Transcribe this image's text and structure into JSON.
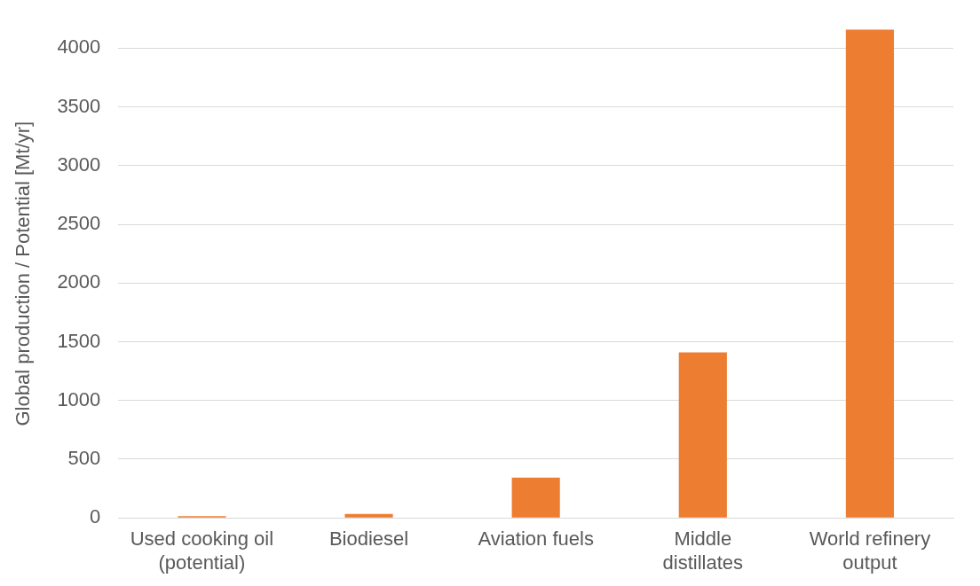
{
  "chart_data": {
    "type": "bar",
    "ylabel": "Global production / Potential [Mt/yr]",
    "categories": [
      "Used cooking oil (potential)",
      "Biodiesel",
      "Aviation fuels",
      "Middle distillates",
      "World refinery output"
    ],
    "values": [
      15,
      33,
      344,
      1410,
      4160
    ],
    "color": "#ed7d31",
    "ylim": [
      0,
      4160
    ],
    "yticks": [
      0,
      500,
      1000,
      1500,
      2000,
      2500,
      3000,
      3500,
      4000
    ],
    "grid": "y",
    "legend": false
  }
}
